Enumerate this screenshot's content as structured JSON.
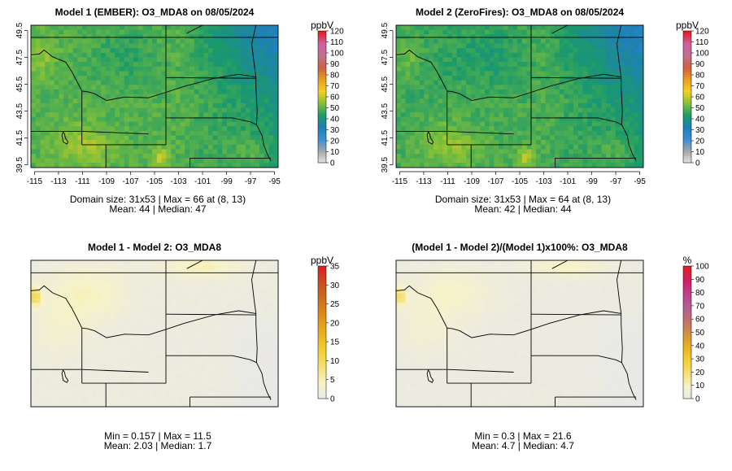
{
  "colors": {
    "abs_ramp": [
      "#e8e8e8",
      "#a8a8a8",
      "#3a8fd6",
      "#1f7fb8",
      "#1a9a6a",
      "#7fbf3a",
      "#f5d020",
      "#e8a020",
      "#d06040",
      "#c07090",
      "#d060a0",
      "#e02020"
    ],
    "diff_ramp": [
      "#e8e8e8",
      "#f7f3c8",
      "#f5e070",
      "#f2cf30",
      "#e8b020",
      "#e09018",
      "#d07018",
      "#c85020",
      "#e02020"
    ],
    "pct_ramp": [
      "#e8e8e8",
      "#f7f3c8",
      "#f5e070",
      "#f2cf30",
      "#e8b020",
      "#d09040",
      "#c07070",
      "#b06090",
      "#c04090",
      "#d02060",
      "#e02020"
    ]
  },
  "chart_data": [
    {
      "type": "heatmap",
      "title": "Model 1 (EMBER): O3_MDA8 on 08/05/2024",
      "x_ticks": [
        "-115",
        "-113",
        "-111",
        "-109",
        "-107",
        "-105",
        "-103",
        "-101",
        "-99",
        "-97",
        "-95"
      ],
      "y_ticks": [
        "39.5",
        "41.5",
        "43.5",
        "45.5",
        "47.5",
        "49.5"
      ],
      "xlim": [
        -115.3,
        -94.7
      ],
      "ylim": [
        39.3,
        49.9
      ],
      "colorbar": {
        "unit": "ppbV",
        "ticks": [
          "0",
          "10",
          "20",
          "30",
          "40",
          "50",
          "60",
          "70",
          "80",
          "90",
          "100",
          "110",
          "120"
        ],
        "range": [
          0,
          120
        ]
      },
      "caption_line1": "Domain size: 31x53 | Max = 66 at (8, 13)",
      "caption_line2": "Mean: 44 |  Median: 47",
      "stats": {
        "max": 66,
        "mean": 44,
        "median": 47
      }
    },
    {
      "type": "heatmap",
      "title": "Model 2 (ZeroFires): O3_MDA8 on 08/05/2024",
      "x_ticks": [
        "-115",
        "-113",
        "-111",
        "-109",
        "-107",
        "-105",
        "-103",
        "-101",
        "-99",
        "-97",
        "-95"
      ],
      "y_ticks": [
        "39.5",
        "41.5",
        "43.5",
        "45.5",
        "47.5",
        "49.5"
      ],
      "xlim": [
        -115.3,
        -94.7
      ],
      "ylim": [
        39.3,
        49.9
      ],
      "colorbar": {
        "unit": "ppbV",
        "ticks": [
          "0",
          "10",
          "20",
          "30",
          "40",
          "50",
          "60",
          "70",
          "80",
          "90",
          "100",
          "110",
          "120"
        ],
        "range": [
          0,
          120
        ]
      },
      "caption_line1": "Domain size: 31x53 | Max = 64 at (8, 13)",
      "caption_line2": "Mean: 42 |  Median: 44",
      "stats": {
        "max": 64,
        "mean": 42,
        "median": 44
      }
    },
    {
      "type": "heatmap",
      "title": "Model 1 - Model 2: O3_MDA8",
      "colorbar": {
        "unit": "ppbV",
        "ticks": [
          "0",
          "5",
          "10",
          "15",
          "20",
          "25",
          "30",
          "35"
        ],
        "range": [
          0,
          35
        ]
      },
      "caption_line1": "Min = 0.157 | Max = 11.5",
      "caption_line2": "Mean: 2.03 |  Median: 1.7",
      "stats": {
        "min": 0.157,
        "max": 11.5,
        "mean": 2.03,
        "median": 1.7
      }
    },
    {
      "type": "heatmap",
      "title": "(Model 1 - Model 2)/(Model 1)x100%: O3_MDA8",
      "colorbar": {
        "unit": "%",
        "ticks": [
          "0",
          "10",
          "20",
          "30",
          "40",
          "50",
          "60",
          "70",
          "80",
          "90",
          "100"
        ],
        "range": [
          0,
          100
        ]
      },
      "caption_line1": "Min = 0.3 | Max = 21.6",
      "caption_line2": "Mean: 4.7 |  Median: 4.7",
      "stats": {
        "min": 0.3,
        "max": 21.6,
        "mean": 4.7,
        "median": 4.7
      }
    }
  ]
}
